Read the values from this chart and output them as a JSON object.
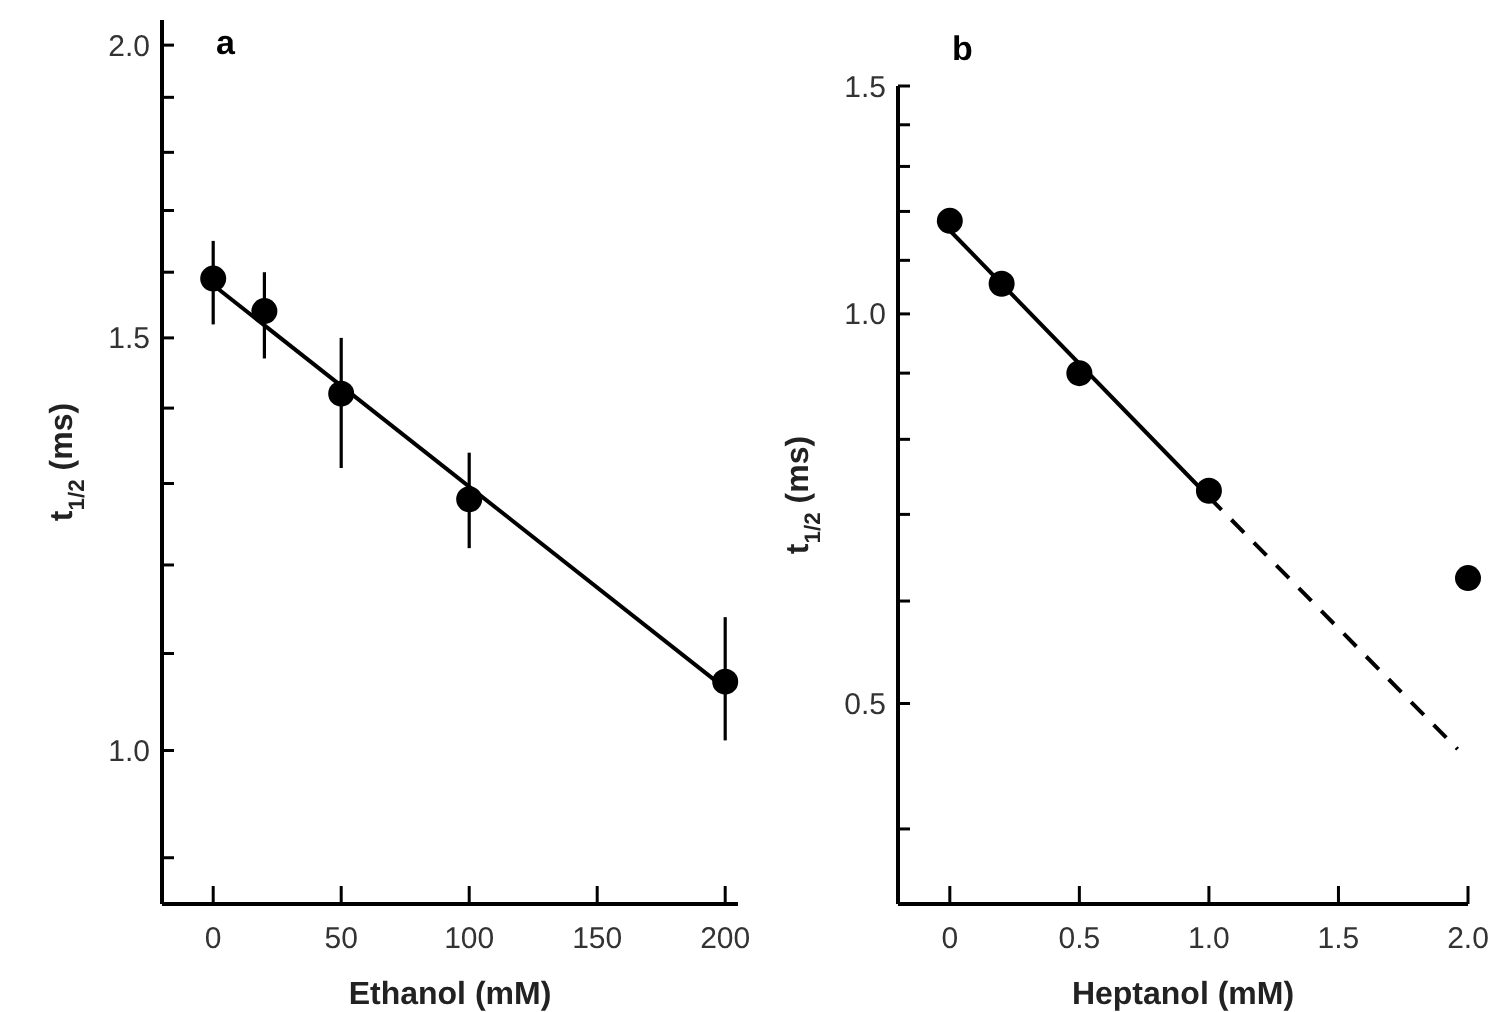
{
  "chart_data": [
    {
      "type": "scatter",
      "title": "a",
      "xlabel": "Ethanol (mM)",
      "ylabel": "t$_{1/2}$ (ms)",
      "log": "y",
      "grid": false,
      "marker": "circle",
      "xlim": [
        -20,
        205
      ],
      "xticks": [
        0,
        50,
        100,
        150,
        200
      ],
      "ylim": [
        0.86,
        2.05
      ],
      "yticks": [
        {
          "value": 0.9,
          "label": null
        },
        {
          "value": 1.0,
          "label": "1.0"
        },
        {
          "value": 1.1,
          "label": null
        },
        {
          "value": 1.2,
          "label": null
        },
        {
          "value": 1.3,
          "label": null
        },
        {
          "value": 1.4,
          "label": null
        },
        {
          "value": 1.5,
          "label": "1.5"
        },
        {
          "value": 1.6,
          "label": null
        },
        {
          "value": 1.7,
          "label": null
        },
        {
          "value": 1.8,
          "label": null
        },
        {
          "value": 1.9,
          "label": null
        },
        {
          "value": 2.0,
          "label": "2.0"
        }
      ],
      "series": [
        {
          "color": "#000000",
          "x": [
            0,
            20,
            50,
            100,
            200
          ],
          "values": [
            1.59,
            1.54,
            1.42,
            1.28,
            1.07
          ],
          "errors": [
            [
              1.52,
              1.65
            ],
            [
              1.47,
              1.6
            ],
            [
              1.32,
              1.5
            ],
            [
              1.22,
              1.34
            ],
            [
              1.01,
              1.14
            ]
          ]
        },
        {
          "type": "line",
          "color": "#000000",
          "marker": "none",
          "line_style": "solid",
          "x": [
            0,
            200
          ],
          "values": [
            1.58,
            1.063
          ]
        }
      ]
    },
    {
      "type": "scatter",
      "title": "b",
      "xlabel": "Heptanol (mM)",
      "ylabel": "t$_{1/2}$ (ms)",
      "log": "y",
      "grid": false,
      "marker": "circle",
      "xlim": [
        -0.2,
        2.0
      ],
      "xticks": [
        0,
        {
          "value": 0.5,
          "label": "0.5"
        },
        {
          "value": 1.0,
          "label": "1.0"
        },
        {
          "value": 1.5,
          "label": "1.5"
        },
        {
          "value": 2.0,
          "label": "2.0"
        }
      ],
      "ylim": [
        0.35,
        1.5
      ],
      "yticks": [
        {
          "value": 0.4,
          "label": null
        },
        {
          "value": 0.5,
          "label": "0.5"
        },
        {
          "value": 0.6,
          "label": null
        },
        {
          "value": 0.7,
          "label": null
        },
        {
          "value": 0.8,
          "label": null
        },
        {
          "value": 0.9,
          "label": null
        },
        {
          "value": 1.0,
          "label": "1.0"
        },
        {
          "value": 1.1,
          "label": null
        },
        {
          "value": 1.2,
          "label": null
        },
        {
          "value": 1.3,
          "label": null
        },
        {
          "value": 1.4,
          "label": null
        },
        {
          "value": 1.5,
          "label": "1.5"
        }
      ],
      "series": [
        {
          "color": "#000000",
          "x": [
            0,
            0.2,
            0.5,
            1.0,
            2.0
          ],
          "values": [
            1.18,
            1.055,
            0.9,
            0.73,
            0.625
          ]
        },
        {
          "type": "line",
          "color": "#000000",
          "marker": "none",
          "line_style": "solid",
          "x": [
            0,
            1.0
          ],
          "values": [
            1.16,
            0.722
          ]
        },
        {
          "type": "line",
          "color": "#000000",
          "marker": "none",
          "line_style": "dashed",
          "x": [
            1.0,
            1.96
          ],
          "values": [
            0.722,
            0.461
          ]
        }
      ]
    }
  ]
}
